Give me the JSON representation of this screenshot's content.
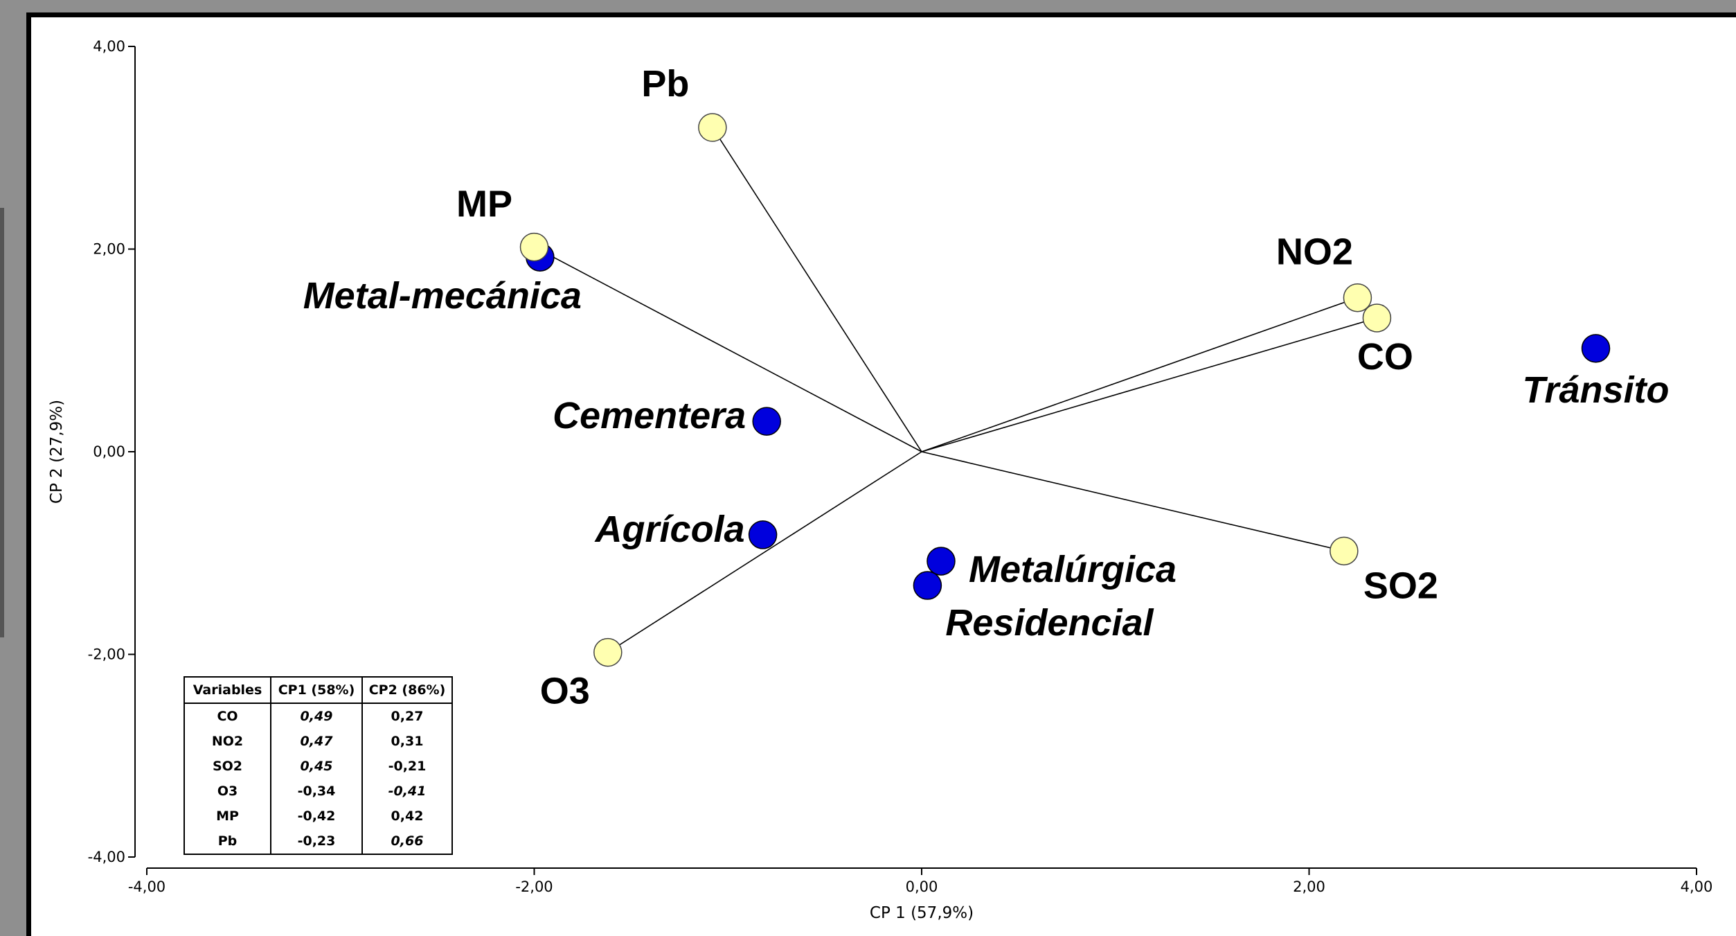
{
  "chart_data": {
    "type": "scatter",
    "subtype": "biplot",
    "xlabel": "CP 1 (57,9%)",
    "ylabel": "CP 2 (27,9%)",
    "xlim": [
      -4,
      4
    ],
    "ylim": [
      -4,
      4
    ],
    "xticks": [
      "-4,00",
      "-2,00",
      "0,00",
      "2,00",
      "4,00"
    ],
    "yticks": [
      "4,00",
      "2,00",
      "0,00",
      "-2,00",
      "-4,00"
    ],
    "xtick_values": [
      -4,
      -2,
      0,
      2,
      4
    ],
    "ytick_values": [
      4,
      2,
      0,
      -2,
      -4
    ],
    "grid": false,
    "series": [
      {
        "kind": "variables",
        "marker_color": "#ffffb0",
        "points": [
          {
            "label": "Pb",
            "x": -1.08,
            "y": 3.2
          },
          {
            "label": "MP",
            "x": -2.0,
            "y": 2.02
          },
          {
            "label": "NO2",
            "x": 2.25,
            "y": 1.52
          },
          {
            "label": "CO",
            "x": 2.35,
            "y": 1.32
          },
          {
            "label": "SO2",
            "x": 2.18,
            "y": -0.98
          },
          {
            "label": "O3",
            "x": -1.62,
            "y": -1.98
          }
        ]
      },
      {
        "kind": "sources",
        "marker_color": "#0000dd",
        "points": [
          {
            "label": "Metal-mecánica",
            "x": -1.97,
            "y": 1.92
          },
          {
            "label": "Cementera",
            "x": -0.8,
            "y": 0.3
          },
          {
            "label": "Agrícola",
            "x": -0.82,
            "y": -0.82
          },
          {
            "label": "Metalúrgica",
            "x": 0.1,
            "y": -1.08
          },
          {
            "label": "Residencial",
            "x": 0.03,
            "y": -1.32
          },
          {
            "label": "Tránsito",
            "x": 3.48,
            "y": 1.02
          }
        ]
      }
    ],
    "table": {
      "headers": [
        "Variables",
        "CP1 (58%)",
        "CP2 (86%)"
      ],
      "rows": [
        {
          "cells": [
            "CO",
            "0,49",
            "0,27"
          ],
          "italic": [
            false,
            true,
            false
          ]
        },
        {
          "cells": [
            "NO2",
            "0,47",
            "0,31"
          ],
          "italic": [
            false,
            true,
            false
          ]
        },
        {
          "cells": [
            "SO2",
            "0,45",
            "-0,21"
          ],
          "italic": [
            false,
            true,
            false
          ]
        },
        {
          "cells": [
            "O3",
            "-0,34",
            "-0,41"
          ],
          "italic": [
            false,
            false,
            true
          ]
        },
        {
          "cells": [
            "MP",
            "-0,42",
            "0,42"
          ],
          "italic": [
            false,
            false,
            false
          ]
        },
        {
          "cells": [
            "Pb",
            "-0,23",
            "0,66"
          ],
          "italic": [
            false,
            false,
            true
          ]
        }
      ]
    }
  }
}
